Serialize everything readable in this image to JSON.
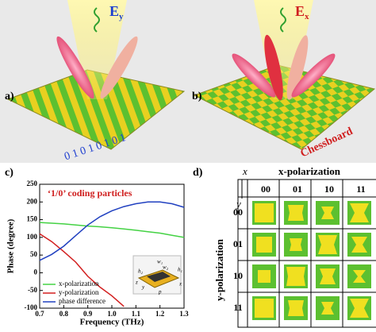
{
  "panels": {
    "a": {
      "label": "a)",
      "field": "E",
      "subscript": "y",
      "code": "0 1 0 1 0 1 0 1"
    },
    "b": {
      "label": "b)",
      "field": "E",
      "subscript": "x",
      "caption": "Chessboard"
    },
    "c": {
      "label": "c)"
    },
    "d": {
      "label": "d)",
      "x_axis": "x",
      "y_axis": "y",
      "column_title": "x-polarization",
      "row_title": "y-polarization",
      "columns": [
        "00",
        "01",
        "10",
        "11"
      ],
      "rows": [
        "00",
        "01",
        "10",
        "11"
      ]
    }
  },
  "chart_data": {
    "type": "line",
    "title": "‘1/0’ coding particles",
    "xlabel": "Frequency (THz)",
    "ylabel": "Phase (degree)",
    "x": [
      0.7,
      0.75,
      0.8,
      0.85,
      0.9,
      0.95,
      1.0,
      1.05,
      1.1,
      1.15,
      1.2,
      1.25,
      1.3
    ],
    "series": [
      {
        "name": "x-polarization",
        "color": "#44d244",
        "values": [
          142,
          140,
          138,
          135,
          132,
          130,
          127,
          124,
          120,
          116,
          112,
          106,
          100
        ]
      },
      {
        "name": "y-polarization",
        "color": "#d21e1e",
        "values": [
          110,
          88,
          60,
          30,
          -10,
          -40,
          -65,
          -95,
          null,
          null,
          null,
          null,
          null
        ]
      },
      {
        "name": "phase difference",
        "color": "#2040c0",
        "values": [
          35,
          52,
          75,
          105,
          135,
          158,
          175,
          187,
          195,
          200,
          200,
          195,
          185
        ]
      }
    ],
    "xlim": [
      0.7,
      1.3
    ],
    "ylim": [
      -100,
      250
    ],
    "xticks": [
      0.7,
      0.8,
      0.9,
      {
        "value": 1,
        "label": "1.0"
      },
      1.1,
      1.2,
      1.3
    ],
    "yticks": [
      -100,
      -50,
      0,
      50,
      100,
      150,
      200,
      250
    ],
    "legend": "lower left",
    "inset_labels": [
      "w₁",
      "w₂",
      "h₁",
      "h₂",
      "p",
      "x",
      "y",
      "z"
    ]
  }
}
